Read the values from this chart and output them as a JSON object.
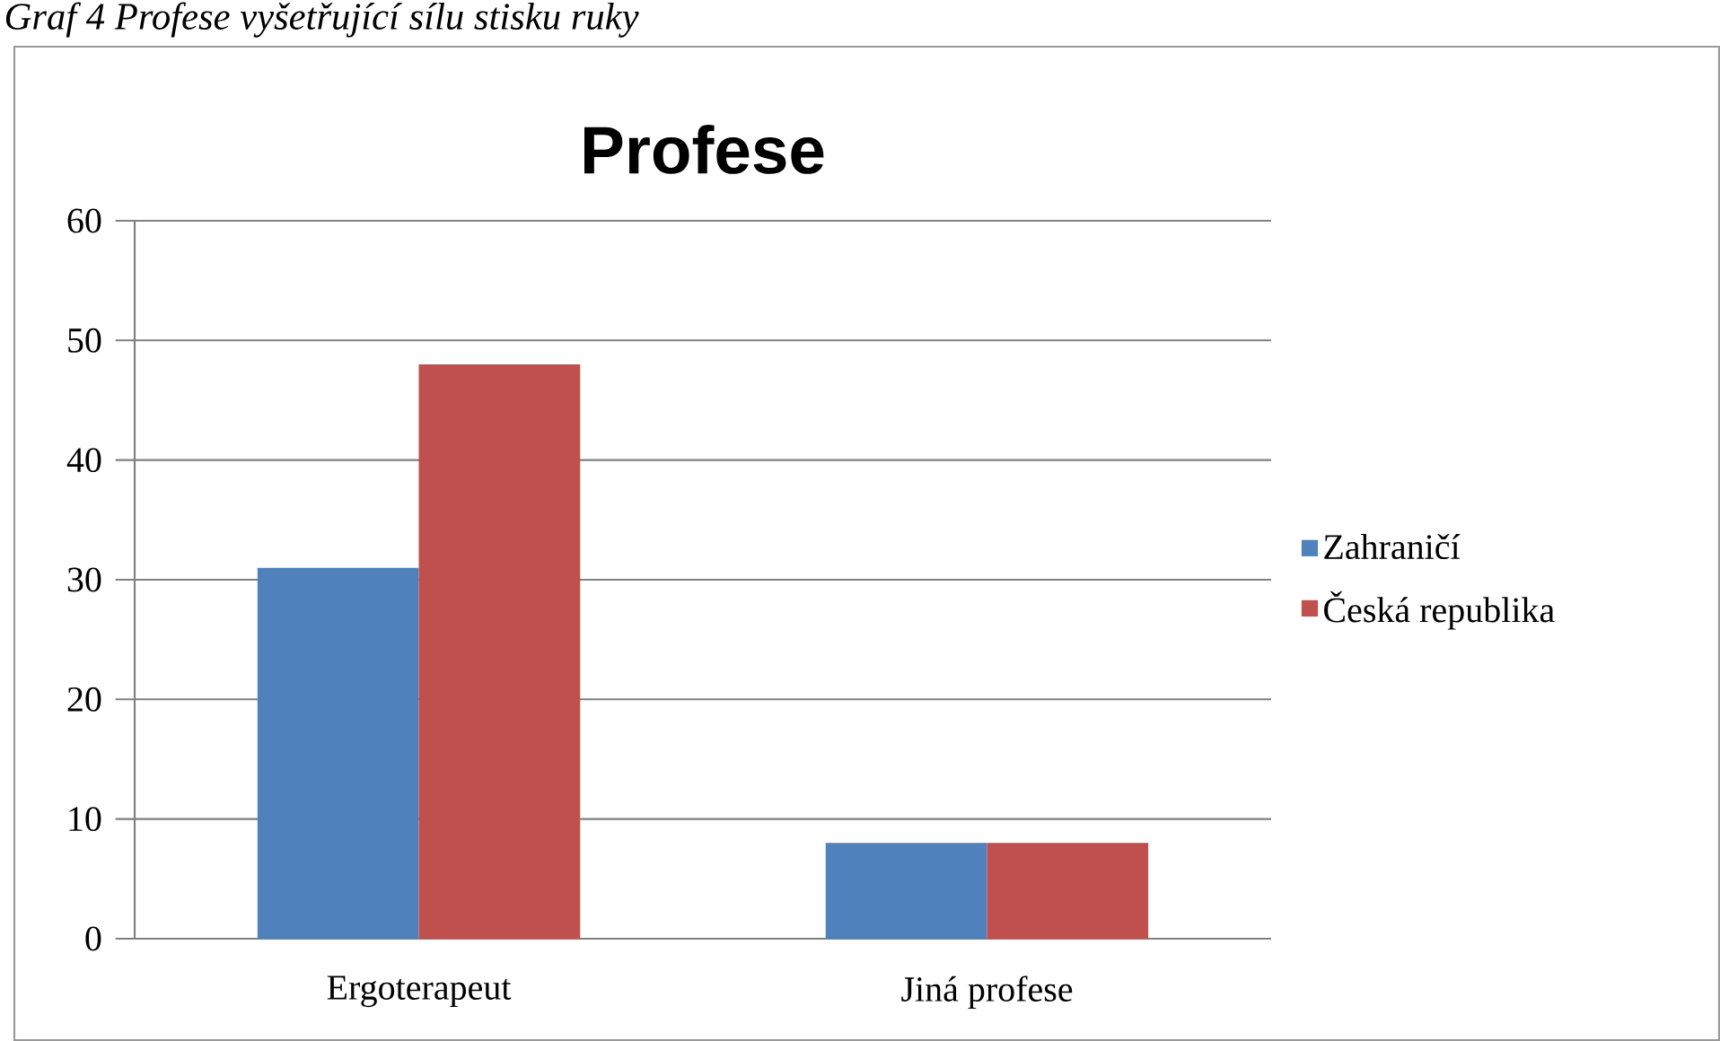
{
  "chart_data": {
    "type": "bar",
    "title": "Profese",
    "annotations": [
      "Graf 4 Profese vyšetřující sílu stisku ruky"
    ],
    "categories": [
      "Ergoterapeut",
      "Jiná profese"
    ],
    "series": [
      {
        "name": "Zahraničí",
        "color": "#4f81bd",
        "values": [
          31,
          8
        ]
      },
      {
        "name": "Česká republika",
        "color": "#c0504d",
        "values": [
          48,
          8
        ]
      }
    ],
    "ylim": [
      0,
      60
    ],
    "yticks": [
      0,
      10,
      20,
      30,
      40,
      50,
      60
    ],
    "grid": "y",
    "legend": "right"
  }
}
